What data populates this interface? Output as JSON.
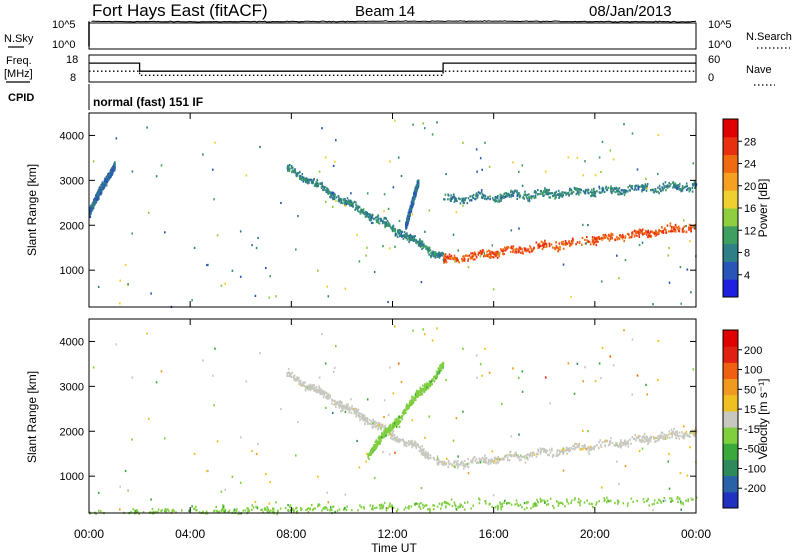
{
  "header": {
    "station": "Fort Hays East (fitACF)",
    "beam": "Beam 14",
    "date": "08/Jan/2013"
  },
  "noise_panel": {
    "left_label": "N.Sky",
    "right_label": "N.Search",
    "left_ticks": [
      "10^5",
      "10^0"
    ],
    "right_ticks": [
      "10^5",
      "10^0"
    ]
  },
  "freq_panel": {
    "left_label_1": "Freq.",
    "left_label_2": "[MHz]",
    "right_label": "Nave",
    "left_ticks": [
      "18",
      "8"
    ],
    "right_ticks": [
      "60",
      "0"
    ]
  },
  "cpid": {
    "label": "CPID",
    "text": "normal (fast) 151 IF"
  },
  "time_axis": {
    "label": "Time UT",
    "ticks": [
      "00:00",
      "04:00",
      "08:00",
      "12:00",
      "16:00",
      "20:00",
      "00:00"
    ]
  },
  "power_colorbar": {
    "label": "Power [dB]",
    "ticks": [
      "28",
      "24",
      "20",
      "16",
      "12",
      "8",
      "4"
    ],
    "colors": [
      "#1f1fe0",
      "#2a55b8",
      "#2f7f86",
      "#3f9f60",
      "#8fcf3f",
      "#f0d030",
      "#f5a020",
      "#f06a10",
      "#e83010",
      "#e00000"
    ]
  },
  "velocity_colorbar": {
    "label": "Velocity [m s⁻¹]",
    "ticks": [
      "200",
      "100",
      "50",
      "15",
      "-15",
      "-50",
      "-100",
      "-200"
    ],
    "colors": [
      "#2030c0",
      "#2a62a8",
      "#2e8a5a",
      "#3aa83a",
      "#7fcf3f",
      "#c8c8c0",
      "#f0c020",
      "#f09a20",
      "#f06010",
      "#e02010",
      "#e00000"
    ]
  },
  "chart_data": [
    {
      "type": "line",
      "title": "N.Sky / N.Search",
      "x": [
        0,
        0.1,
        24
      ],
      "series": [
        {
          "name": "N.Sky",
          "values": [
            0.5,
            5.3,
            5.3
          ]
        }
      ],
      "ylim_log10": [
        0,
        5
      ],
      "xlim_hours": [
        0,
        24
      ]
    },
    {
      "type": "line",
      "title": "Freq. [MHz] / Nave",
      "x_hours": [
        0,
        2,
        2,
        14,
        14,
        24
      ],
      "series": [
        {
          "name": "Freq.",
          "values": [
            15,
            15,
            12,
            12,
            15,
            15
          ]
        },
        {
          "name": "Nave",
          "values": [
            24,
            24,
            15,
            15,
            24,
            24
          ]
        }
      ],
      "ylim_freq": [
        8,
        18
      ],
      "ylim_nave": [
        0,
        60
      ]
    },
    {
      "type": "heatmap",
      "title": "Power [dB]",
      "xlabel": "Time UT",
      "ylabel": "Slant Range [km]",
      "xlim_hours": [
        0,
        24
      ],
      "ylim_km": [
        180,
        4500
      ],
      "y_ticks": [
        1000,
        2000,
        3000,
        4000
      ],
      "zlim": [
        0,
        30
      ],
      "features": [
        {
          "t_start": 7.8,
          "t_end": 14.0,
          "range_start": 3300,
          "range_end": 1300,
          "power": 8
        },
        {
          "t_start": 12.5,
          "t_end": 13.0,
          "range_start": 2000,
          "range_end": 2950,
          "power": 6
        },
        {
          "t_start": 14.0,
          "t_end": 24.0,
          "range_start": 1250,
          "range_end": 2000,
          "power": 24
        },
        {
          "t_start": 14.0,
          "t_end": 24.0,
          "range_start": 2600,
          "range_end": 2900,
          "power": 8
        },
        {
          "t_start": 0.0,
          "t_end": 1.0,
          "range_start": 2300,
          "range_end": 3400,
          "power": 6
        }
      ]
    },
    {
      "type": "heatmap",
      "title": "Velocity [m s⁻¹]",
      "xlabel": "Time UT",
      "ylabel": "Slant Range [km]",
      "xlim_hours": [
        0,
        24
      ],
      "ylim_km": [
        180,
        4500
      ],
      "y_ticks": [
        1000,
        2000,
        3000,
        4000
      ],
      "zlim": [
        -200,
        200
      ],
      "features": [
        {
          "t_start": 7.8,
          "t_end": 14.0,
          "range_start": 3300,
          "range_end": 1300,
          "velocity": 0
        },
        {
          "t_start": 14.0,
          "t_end": 24.0,
          "range_start": 1250,
          "range_end": 2000,
          "velocity": 0
        },
        {
          "t_start": 11.0,
          "t_end": 14.0,
          "range_start": 1500,
          "range_end": 3500,
          "velocity": 40
        },
        {
          "t_start": 0.0,
          "t_end": 24.0,
          "range_start": 180,
          "range_end": 500,
          "velocity": 40
        }
      ]
    }
  ]
}
